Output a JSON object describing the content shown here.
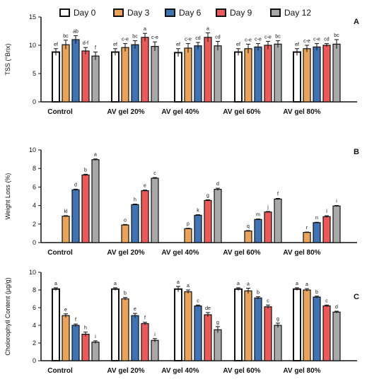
{
  "legend": {
    "items": [
      {
        "label": "Day 0",
        "color": "#ffffff"
      },
      {
        "label": "Day 3",
        "color": "#e9a35a"
      },
      {
        "label": "Day 6",
        "color": "#3f73b4"
      },
      {
        "label": "Day 9",
        "color": "#ea5a5a"
      },
      {
        "label": "Day 12",
        "color": "#a8a8a8"
      }
    ]
  },
  "chart_data": [
    {
      "type": "bar",
      "panel_label": "A",
      "ylabel": "TSS (°Brix)",
      "ylim": [
        0,
        15
      ],
      "yticks": [
        0,
        5,
        10,
        15
      ],
      "categories": [
        "Control",
        "AV gel 20%",
        "AV gel 40%",
        "AV gel 60%",
        "AV gel 80%"
      ],
      "series": [
        {
          "name": "Day 0",
          "values": [
            8.8,
            8.8,
            8.7,
            8.8,
            8.8
          ],
          "errors": [
            0.6,
            0.6,
            0.7,
            0.6,
            0.6
          ],
          "letters": [
            "ef",
            "ef",
            "ef",
            "ef",
            "ef"
          ]
        },
        {
          "name": "Day 3",
          "values": [
            10.1,
            9.6,
            9.5,
            9.4,
            9.4
          ],
          "errors": [
            0.8,
            0.7,
            0.8,
            0.8,
            0.6
          ],
          "letters": [
            "bc",
            "c-e",
            "c-e",
            "c-e",
            "c-e"
          ]
        },
        {
          "name": "Day 6",
          "values": [
            11.0,
            10.1,
            9.9,
            9.7,
            9.7
          ],
          "errors": [
            0.7,
            0.7,
            0.6,
            0.6,
            0.6
          ],
          "letters": [
            "ab",
            "bc",
            "cd",
            "c-e",
            "c-e"
          ]
        },
        {
          "name": "Day 9",
          "values": [
            9.0,
            11.4,
            11.4,
            10.0,
            10.0
          ],
          "errors": [
            0.6,
            0.7,
            0.8,
            0.7,
            0.3
          ],
          "letters": [
            "d-f",
            "a",
            "a",
            "c-e",
            "cd"
          ]
        },
        {
          "name": "Day 12",
          "values": [
            8.1,
            9.8,
            9.9,
            10.2,
            10.2
          ],
          "errors": [
            0.7,
            0.8,
            0.8,
            0.6,
            0.8
          ],
          "letters": [
            "f",
            "c-e",
            "cd",
            "bc",
            "bc"
          ]
        }
      ]
    },
    {
      "type": "bar",
      "panel_label": "B",
      "ylabel": "Weight Loss (%)",
      "ylim": [
        0,
        10
      ],
      "yticks": [
        0,
        2,
        4,
        6,
        8,
        10
      ],
      "categories": [
        "Control",
        "AV gel 20%",
        "AV gel 40%",
        "AV gel 60%",
        "AV gel 80%"
      ],
      "series": [
        {
          "name": "Day 0",
          "values": [
            0,
            0,
            0,
            0,
            0
          ],
          "errors": [
            0,
            0,
            0,
            0,
            0
          ],
          "letters": [
            "",
            "",
            "",
            "",
            ""
          ]
        },
        {
          "name": "Day 3",
          "values": [
            2.85,
            1.9,
            1.5,
            1.25,
            1.1
          ],
          "errors": [
            0.06,
            0.06,
            0.05,
            0.05,
            0.04
          ],
          "letters": [
            "kl",
            "o",
            "p",
            "q",
            "r"
          ]
        },
        {
          "name": "Day 6",
          "values": [
            5.7,
            4.1,
            2.95,
            2.5,
            2.15
          ],
          "errors": [
            0.07,
            0.06,
            0.06,
            0.05,
            0.05
          ],
          "letters": [
            "d",
            "h",
            "k",
            "m",
            "n"
          ]
        },
        {
          "name": "Day 9",
          "values": [
            7.3,
            5.6,
            4.55,
            3.3,
            2.8
          ],
          "errors": [
            0.08,
            0.07,
            0.07,
            0.06,
            0.1
          ],
          "letters": [
            "b",
            "e",
            "g",
            "j",
            "l"
          ]
        },
        {
          "name": "Day 12",
          "values": [
            8.95,
            6.95,
            5.75,
            4.7,
            3.95
          ],
          "errors": [
            0.08,
            0.07,
            0.12,
            0.07,
            0.06
          ],
          "letters": [
            "a",
            "c",
            "d",
            "f",
            "i"
          ]
        }
      ]
    },
    {
      "type": "bar",
      "panel_label": "C",
      "ylabel": "Cholorophyll Content (µg/g)",
      "ylim": [
        0,
        10
      ],
      "yticks": [
        0,
        2,
        4,
        6,
        8,
        10
      ],
      "categories": [
        "Control",
        "AV gel 20%",
        "AV gel 40%",
        "AV gel 60%",
        "AV gel 80%"
      ],
      "series": [
        {
          "name": "Day 0",
          "values": [
            8.1,
            8.1,
            8.1,
            8.1,
            8.1
          ],
          "errors": [
            0.15,
            0.15,
            0.3,
            0.15,
            0.15
          ],
          "letters": [
            "a",
            "a",
            "a",
            "a",
            "a"
          ]
        },
        {
          "name": "Day 3",
          "values": [
            5.1,
            7.0,
            7.8,
            7.9,
            8.0
          ],
          "errors": [
            0.2,
            0.15,
            0.2,
            0.3,
            0.15
          ],
          "letters": [
            "e",
            "b",
            "a",
            "a",
            "a"
          ]
        },
        {
          "name": "Day 6",
          "values": [
            4.0,
            5.1,
            6.2,
            7.1,
            7.2
          ],
          "errors": [
            0.15,
            0.25,
            0.1,
            0.15,
            0.1
          ],
          "letters": [
            "f",
            "e",
            "c",
            "b",
            "b"
          ]
        },
        {
          "name": "Day 9",
          "values": [
            3.0,
            4.2,
            5.2,
            6.1,
            6.2
          ],
          "errors": [
            0.25,
            0.15,
            0.25,
            0.2,
            0.1
          ],
          "letters": [
            "h",
            "f",
            "de",
            "c",
            "c"
          ]
        },
        {
          "name": "Day 12",
          "values": [
            2.1,
            2.3,
            3.5,
            4.0,
            5.5
          ],
          "errors": [
            0.15,
            0.2,
            0.35,
            0.25,
            0.1
          ],
          "letters": [
            "i",
            "i",
            "g",
            "g",
            "d"
          ]
        }
      ]
    }
  ]
}
